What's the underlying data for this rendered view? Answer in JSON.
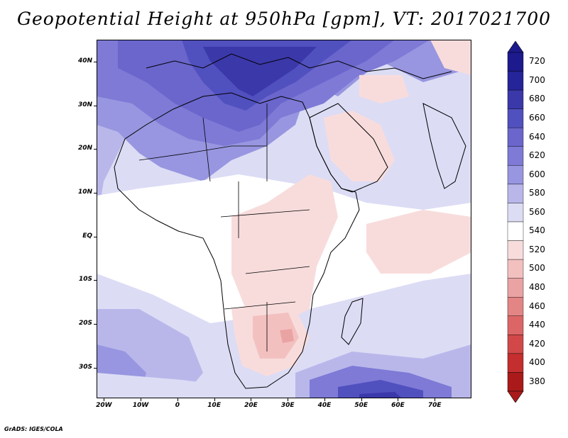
{
  "title": "Geopotential Height at 950hPa [gpm], VT: 2017021700",
  "footer": "GrADS: IGES/COLA",
  "map": {
    "lat_labels": [
      "40N",
      "30N",
      "20N",
      "10N",
      "EQ",
      "10S",
      "20S",
      "30S"
    ],
    "lon_labels": [
      "20W",
      "10W",
      "0",
      "10E",
      "20E",
      "30E",
      "40E",
      "50E",
      "60E",
      "70E"
    ],
    "lat_values": [
      40,
      30,
      20,
      10,
      0,
      -10,
      -20,
      -30
    ],
    "lon_values": [
      -20,
      -10,
      0,
      10,
      20,
      30,
      40,
      50,
      60,
      70
    ],
    "lon_range": [
      -22,
      80
    ],
    "lat_range": [
      -37,
      45
    ]
  },
  "colorbar": {
    "levels": [
      "720",
      "700",
      "680",
      "660",
      "640",
      "620",
      "600",
      "580",
      "560",
      "540",
      "520",
      "500",
      "480",
      "460",
      "440",
      "420",
      "400",
      "380"
    ],
    "colors": [
      "#1c1a8c",
      "#262499",
      "#3b38aa",
      "#5150bf",
      "#6a66cc",
      "#7e7ad6",
      "#9896e0",
      "#b9b7ea",
      "#dcdcf5",
      "#ffffff",
      "#f8dcdc",
      "#f3c0c0",
      "#eaa3a3",
      "#e48585",
      "#dc6666",
      "#d24848",
      "#c42e2e",
      "#aa1a1a"
    ],
    "top_arrow_color": "#1c1a8c",
    "bottom_arrow_color": "#aa1a1a"
  }
}
